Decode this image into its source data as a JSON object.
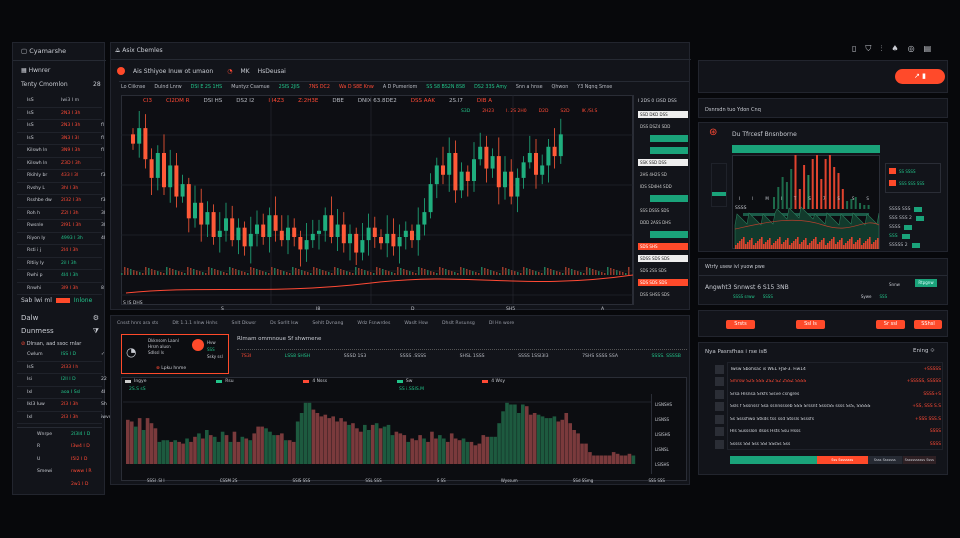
{
  "sidebar": {
    "title": "Cyamarshe",
    "section": "Hwnrer",
    "subtitle": "Tenty Cmomlon",
    "count": "28",
    "rows": [
      {
        "a": "IsS",
        "b": "Iwi3 I m",
        "c": "",
        "col": "dim"
      },
      {
        "a": "IsS",
        "b": "2N3 I 3h",
        "c": "",
        "col": "red"
      },
      {
        "a": "IsS",
        "b": "2N3 I 3h",
        "c": "fl",
        "col": "red"
      },
      {
        "a": "IsS",
        "b": "3N3 I 3l",
        "c": "fl",
        "col": "red"
      },
      {
        "a": "Kilswh ln",
        "b": "3N9 I 3h",
        "c": "fl",
        "col": "red"
      },
      {
        "a": "Kilswh ln",
        "b": "Z3D I 3h",
        "c": "",
        "col": "red"
      },
      {
        "a": "Rkihly br",
        "b": "433 I 3l",
        "c": "f3",
        "col": "red"
      },
      {
        "a": "Rvshy L",
        "b": "3hI I 3h",
        "c": "",
        "col": "red"
      },
      {
        "a": "Rsshbe dw",
        "b": "2I32 I 3h",
        "c": "f3",
        "col": "red"
      },
      {
        "a": "Roh h",
        "b": "Z2I I 3h",
        "c": "3l",
        "col": "red"
      },
      {
        "a": "Rwsnle",
        "b": "2I91 I 3h",
        "c": "3l",
        "col": "red"
      },
      {
        "a": "Riyon ly",
        "b": "4993 I 3h",
        "c": "4I",
        "col": "green"
      },
      {
        "a": "Rsti i j",
        "b": "2I4 I 3h",
        "c": "",
        "col": "red"
      },
      {
        "a": "Rltiiy ly",
        "b": "2il I 3h",
        "c": "",
        "col": "green"
      },
      {
        "a": "Rwhi p",
        "b": "4I4 I 3h",
        "c": "",
        "col": "green"
      },
      {
        "a": "Rnwhi",
        "b": "3I9 I 3h",
        "c": "8",
        "col": "red"
      }
    ],
    "toggle_label": "Sab lwi ml",
    "toggle_state": "Inlone",
    "menu": [
      {
        "label": "Dalw",
        "icon": "gear-icon"
      },
      {
        "label": "Dunmess",
        "icon": "filter-icon"
      }
    ],
    "note": "Dlrsan, aad ssoc rnlar",
    "rows2": [
      {
        "a": "Cwlum",
        "b": "ISS I D",
        "c": "✓",
        "col": "green"
      },
      {
        "a": "IsS",
        "b": "2I33 I h",
        "c": "",
        "col": "red"
      },
      {
        "a": "Isi",
        "b": "I2ll I D",
        "c": "22",
        "col": "green"
      },
      {
        "a": "Ixl",
        "b": "aoa I Ssl",
        "c": "4I",
        "col": "green"
      },
      {
        "a": "IkI3 Iuw",
        "b": "2I3 I 3h",
        "c": "Sh",
        "col": "red"
      },
      {
        "a": "IxI",
        "b": "2I3 I 3h",
        "c": "iwvdw",
        "col": "red"
      }
    ],
    "rows3": [
      {
        "a": "Wnrpe",
        "b": "2I3I4 I D",
        "col": "green"
      },
      {
        "a": "R",
        "b": "I3w4 I D",
        "col": "red"
      },
      {
        "a": "U",
        "b": "I5I2 I D",
        "col": "red"
      },
      {
        "a": "Smewi",
        "b": "rwww I R",
        "col": "red"
      },
      {
        "a": "",
        "b": "2w1 I D",
        "col": "red"
      }
    ]
  },
  "main": {
    "title": "Asix Cbemles",
    "symbol_label": "Ais Sthiyoe Inuw ot umaon",
    "tag1": "MK",
    "tag2": "HsDeusai",
    "toolbar": [
      {
        "t": "Lo Ciiknse",
        "c": "dim"
      },
      {
        "t": "Dulnd Lnrw",
        "c": "dim"
      },
      {
        "t": "DSI E 2S 1HS",
        "c": "green"
      },
      {
        "t": "Muntyz Csamue",
        "c": "dim"
      },
      {
        "t": "2SIS 2JIS",
        "c": "green"
      },
      {
        "t": "7NS DC2",
        "c": "red"
      },
      {
        "t": "Wa D S8E Knw",
        "c": "red"
      },
      {
        "t": "A D Pumeriom",
        "c": "dim"
      },
      {
        "t": "SS S8 BS2N 8S8",
        "c": "green"
      },
      {
        "t": "DS2 33S Amy",
        "c": "green"
      },
      {
        "t": "Snn a hnse",
        "c": "dim"
      },
      {
        "t": "Qhwon",
        "c": "dim"
      },
      {
        "t": "Y3 Nqnq Smse",
        "c": "dim"
      }
    ],
    "ticker": [
      {
        "t": "CI3",
        "c": "red"
      },
      {
        "t": "CI2DM R",
        "c": "red"
      },
      {
        "t": "DSI HS",
        "c": "dim"
      },
      {
        "t": "DS2 I2",
        "c": "dim"
      },
      {
        "t": "I I4Z3",
        "c": "red"
      },
      {
        "t": "Z:2H3E",
        "c": "red"
      },
      {
        "t": "DBE",
        "c": "dim"
      },
      {
        "t": "DNIX 63.8DE2",
        "c": "dim"
      },
      {
        "t": "DSS AAK",
        "c": "red"
      },
      {
        "t": "2S.I7",
        "c": "dim"
      },
      {
        "t": "DIB A",
        "c": "red"
      }
    ],
    "sub_ticker": [
      {
        "t": "S3D",
        "c": "green"
      },
      {
        "t": "2H23",
        "c": "red"
      },
      {
        "t": "I. 2S 2H0",
        "c": "red"
      },
      {
        "t": "D2D",
        "c": "red"
      },
      {
        "t": "S2D",
        "c": "red"
      },
      {
        "t": "IK /SI.S",
        "c": "red"
      }
    ],
    "price_top": "I 2DS 0  I3SD DSS",
    "price_tags": [
      {
        "t": "SSD DKD DSS",
        "s": "light"
      },
      {
        "t": "DSS DSZ4 SDD",
        "s": "text"
      },
      {
        "t": "",
        "s": "green"
      },
      {
        "t": "",
        "s": "green"
      },
      {
        "t": "SSK SSD DSS",
        "s": "light"
      },
      {
        "t": "2HS 4H2S SD",
        "s": "text"
      },
      {
        "t": "IDS SD4H4 SDD",
        "s": "text"
      },
      {
        "t": "",
        "s": "green"
      },
      {
        "t": "SSS DSSS SDS",
        "s": "text"
      },
      {
        "t": "DDD 2ASS DHS",
        "s": "text"
      },
      {
        "t": "",
        "s": "green"
      },
      {
        "t": "SDS SHS",
        "s": "red"
      },
      {
        "t": "SDSS SDS SDS",
        "s": "light"
      },
      {
        "t": "SDS 2SS SDS",
        "s": "text"
      },
      {
        "t": "SDS SDS SDS",
        "s": "red"
      },
      {
        "t": "DSS SHSS SDS",
        "s": "text"
      }
    ],
    "axis_left": "S IS DHS",
    "xaxis": [
      "S",
      "I8",
      "D",
      "SH5",
      "A"
    ],
    "closes": [
      118,
      128,
      108,
      96,
      112,
      90,
      104,
      84,
      92,
      70,
      80,
      66,
      74,
      58,
      62,
      70,
      56,
      64,
      52,
      60,
      66,
      58,
      72,
      62,
      56,
      64,
      58,
      50,
      56,
      60,
      62,
      72,
      58,
      66,
      54,
      60,
      48,
      56,
      64,
      58,
      54,
      60,
      52,
      58,
      62,
      56,
      66,
      74,
      92,
      104,
      98,
      112,
      88,
      100,
      94,
      108,
      116,
      102,
      110,
      90,
      100,
      84,
      96,
      106,
      112,
      98,
      104,
      116,
      110,
      124
    ],
    "candle_colors": {
      "up": "#1fae7e",
      "down": "#ff5a38"
    }
  },
  "bottom": {
    "tabs": [
      "Cnsst hnrs ara sts",
      "Dlt 1.1.1 nlnw Hnhs",
      "Snlt Dkwsr",
      "Ds Sorllt lsw",
      "Sehlt Dvnang",
      "Wdz Fsnwrdes",
      "Waslt Hsw",
      "Dhslt Rvsunsg",
      "DI Hn wore"
    ],
    "card": {
      "lines": [
        "Dkknsom Laanl",
        "Hrsm alusn",
        "Sdlssl ls"
      ],
      "side": [
        "Hvw",
        "SSS",
        "Ssky ssl"
      ],
      "link": "Lpku hnme"
    },
    "stats_title": "Rlmam ommnoue   Sf shwmene",
    "stats": [
      {
        "t": "7S3I",
        "c": "red"
      },
      {
        "t": "LSS8 SHSH",
        "c": "green"
      },
      {
        "t": "SSSD 1S3",
        "c": "dim"
      },
      {
        "t": "SSSS .SSSS",
        "c": "dim"
      },
      {
        "t": "SHSL 1SSS",
        "c": "dim"
      },
      {
        "t": "SSSS 1SSI3I3",
        "c": "dim"
      },
      {
        "t": "7SHS SSSS SSA",
        "c": "dim"
      },
      {
        "t": "SSSS. SSSSB",
        "c": "green"
      }
    ],
    "legend": [
      {
        "t": "Ingye",
        "c": "#ccc",
        "sw": "#ccc"
      },
      {
        "t": "Rsu",
        "c": "#ccc",
        "sw": "#22c48a"
      },
      {
        "t": "4 Nsss",
        "c": "#ccc",
        "sw": "#ff4a35"
      },
      {
        "t": "Sw",
        "c": "#ccc",
        "sw": "#22c48a"
      },
      {
        "t": "4 Wsy",
        "c": "#ccc",
        "sw": "#ff4a35"
      }
    ],
    "vol_left": "2S.S sS",
    "vol_mid": "SS i.SSIS.M",
    "yaxis": [
      "LISNSHS",
      "LISNSS",
      "LISISHS",
      "LISNSL",
      "LSISHS"
    ],
    "xaxis": [
      "SSSI .SI I",
      "CSSM 2S",
      "SSIS SSS",
      "SSL SSS",
      "S SS",
      "Wyssum",
      "SSd SSmg",
      "SSS SSS"
    ],
    "volumes": [
      52,
      50,
      44,
      54,
      40,
      54,
      48,
      42,
      26,
      28,
      28,
      26,
      28,
      26,
      24,
      30,
      26,
      32,
      36,
      30,
      40,
      34,
      32,
      26,
      38,
      34,
      26,
      38,
      26,
      32,
      30,
      28,
      36,
      44,
      44,
      42,
      38,
      34,
      34,
      36,
      28,
      28,
      26,
      50,
      60,
      72,
      72,
      64,
      60,
      56,
      58,
      54,
      56,
      50,
      54,
      50,
      46,
      48,
      42,
      38,
      46,
      40,
      46,
      48,
      42,
      44,
      46,
      34,
      38,
      36,
      34,
      26,
      30,
      28,
      34,
      30,
      26,
      38,
      30,
      34,
      30,
      26,
      36,
      30,
      28,
      30,
      26,
      26,
      22,
      24,
      34,
      32,
      32,
      32,
      48,
      62,
      72,
      70,
      70,
      60,
      70,
      68,
      58,
      60,
      58,
      56,
      54,
      54,
      56,
      50,
      52,
      60,
      48,
      40,
      36,
      24,
      24,
      14,
      10,
      10,
      10,
      10,
      10,
      14,
      12,
      10,
      10,
      12,
      10
    ],
    "volume_signs": "rrgrgrrrgggrgrrgrrgrgrgggrgrrgrgrrrgggrrgrrggggrrrrrrrrrgrrrggrgrgggrrrgrrrgrrrggrrrrggrrrrrgggggggggrrrgggggrrrrrrrrrrrrrrrrrrrg"
  },
  "right": {
    "icons": [
      "document-icon",
      "shield-icon",
      "chart-icon",
      "bell-icon",
      "settings-icon",
      "menu-icon"
    ],
    "action_button": "↗ ▮",
    "section_title": "Dsnrsdn tuo Ydon Cnq",
    "mini_title": "Du Tfrcesf Bnsnborne",
    "mini_side": [
      {
        "t": "SS SSSS",
        "c": "green"
      },
      {
        "t": "SSS SSS SSS",
        "c": "green"
      }
    ],
    "mini_stats": [
      {
        "t": "SSSS SSS",
        "c": "dim"
      },
      {
        "t": "SSS SSS  2",
        "c": "dim"
      },
      {
        "t": "SSSS",
        "c": "dim"
      },
      {
        "t": "SSS",
        "c": "green"
      },
      {
        "t": "SSSSS  2",
        "c": "dim"
      }
    ],
    "mini_xaxis": [
      "I",
      "I",
      "M",
      "I",
      "T",
      "S",
      "7",
      "S",
      "S",
      "S"
    ],
    "mini_label": "SSSS",
    "info_title": "Wtrfy usew ivl yuow pwe",
    "info_line": "Angwht3  Snnwst 6 S15 3NB",
    "info_small": "Snnw",
    "info_btn": "Rtpgnw",
    "info_meta": [
      "SSSS srww",
      "SSSS",
      "Sywe",
      "SSS"
    ],
    "buttons": [
      "Srsts",
      "Ssl ls",
      "Sr ssl",
      "SShsl"
    ],
    "list_title": "Nya Pasrsfhas i rse isB",
    "list_action": "Ening",
    "list": [
      {
        "t": "Twsw Sbohsac is WEL FJSF3. Fiw14",
        "v": "+SSSSS",
        "c": "#d5d8de"
      },
      {
        "t": "Smrsw S2S SSS 2S2 S2 2SSZ SSSS",
        "v": "+SSSSS, SSSSS",
        "c": "#ff4a35"
      },
      {
        "t": "Srsa Hlsnsa Srkfs Sisve csngres",
        "v": "SSSS+S",
        "c": "#d5d8de"
      },
      {
        "t": "Ssls f Sssnssr Ssa ssnnssseb SSS Srssnt SsssSS ssss SsS, SSSSS",
        "v": "+SS, SSS S.S",
        "c": "#d5d8de"
      },
      {
        "t": "Ss Ssssfiwo Stkds tss ssd Stssls Ssssfs",
        "v": "+SSS SSS.S",
        "c": "#d5d8de"
      },
      {
        "t": "Hls Sussslon dsos Hsts Ssu Hsss",
        "v": "SSSS",
        "c": "#d5d8de"
      },
      {
        "t": "Sssss SSI Sss SSl SSsSs Sss",
        "v": "SSSS",
        "c": "#d5d8de"
      }
    ],
    "progress": {
      "green": 0.42,
      "labels": [
        "Sss Ssssssss",
        "Ssss Sssssss",
        "Sssssssssss Ssss"
      ]
    }
  },
  "colors": {
    "bg": "#07080b",
    "panel": "#12141a",
    "green": "#22c48a",
    "red": "#ff4a35",
    "orange": "#ff4a2a"
  }
}
